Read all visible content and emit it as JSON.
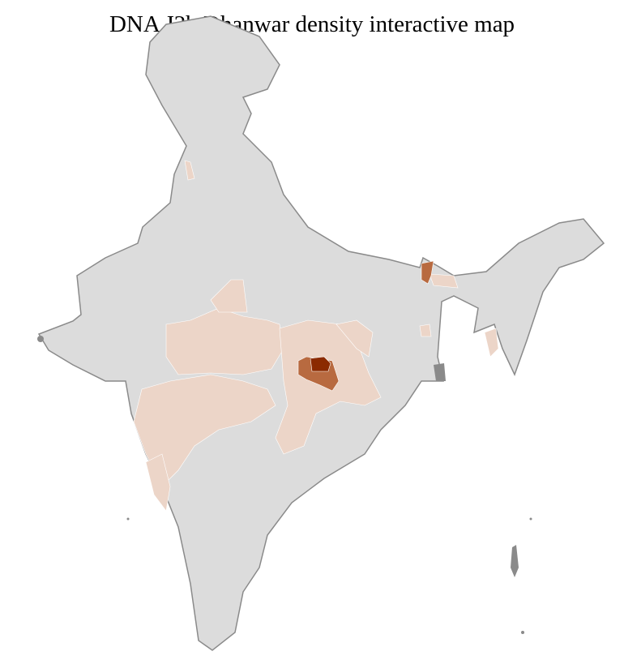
{
  "title": "DNA J2b Dhanwar density interactive map",
  "colors": {
    "no_data": "#dcdcdc",
    "low": "#ecd5c8",
    "medium": "#b86a40",
    "high": "#8b2a00",
    "state_border": "#8a8a8a",
    "district_border": "#ffffff"
  }
}
